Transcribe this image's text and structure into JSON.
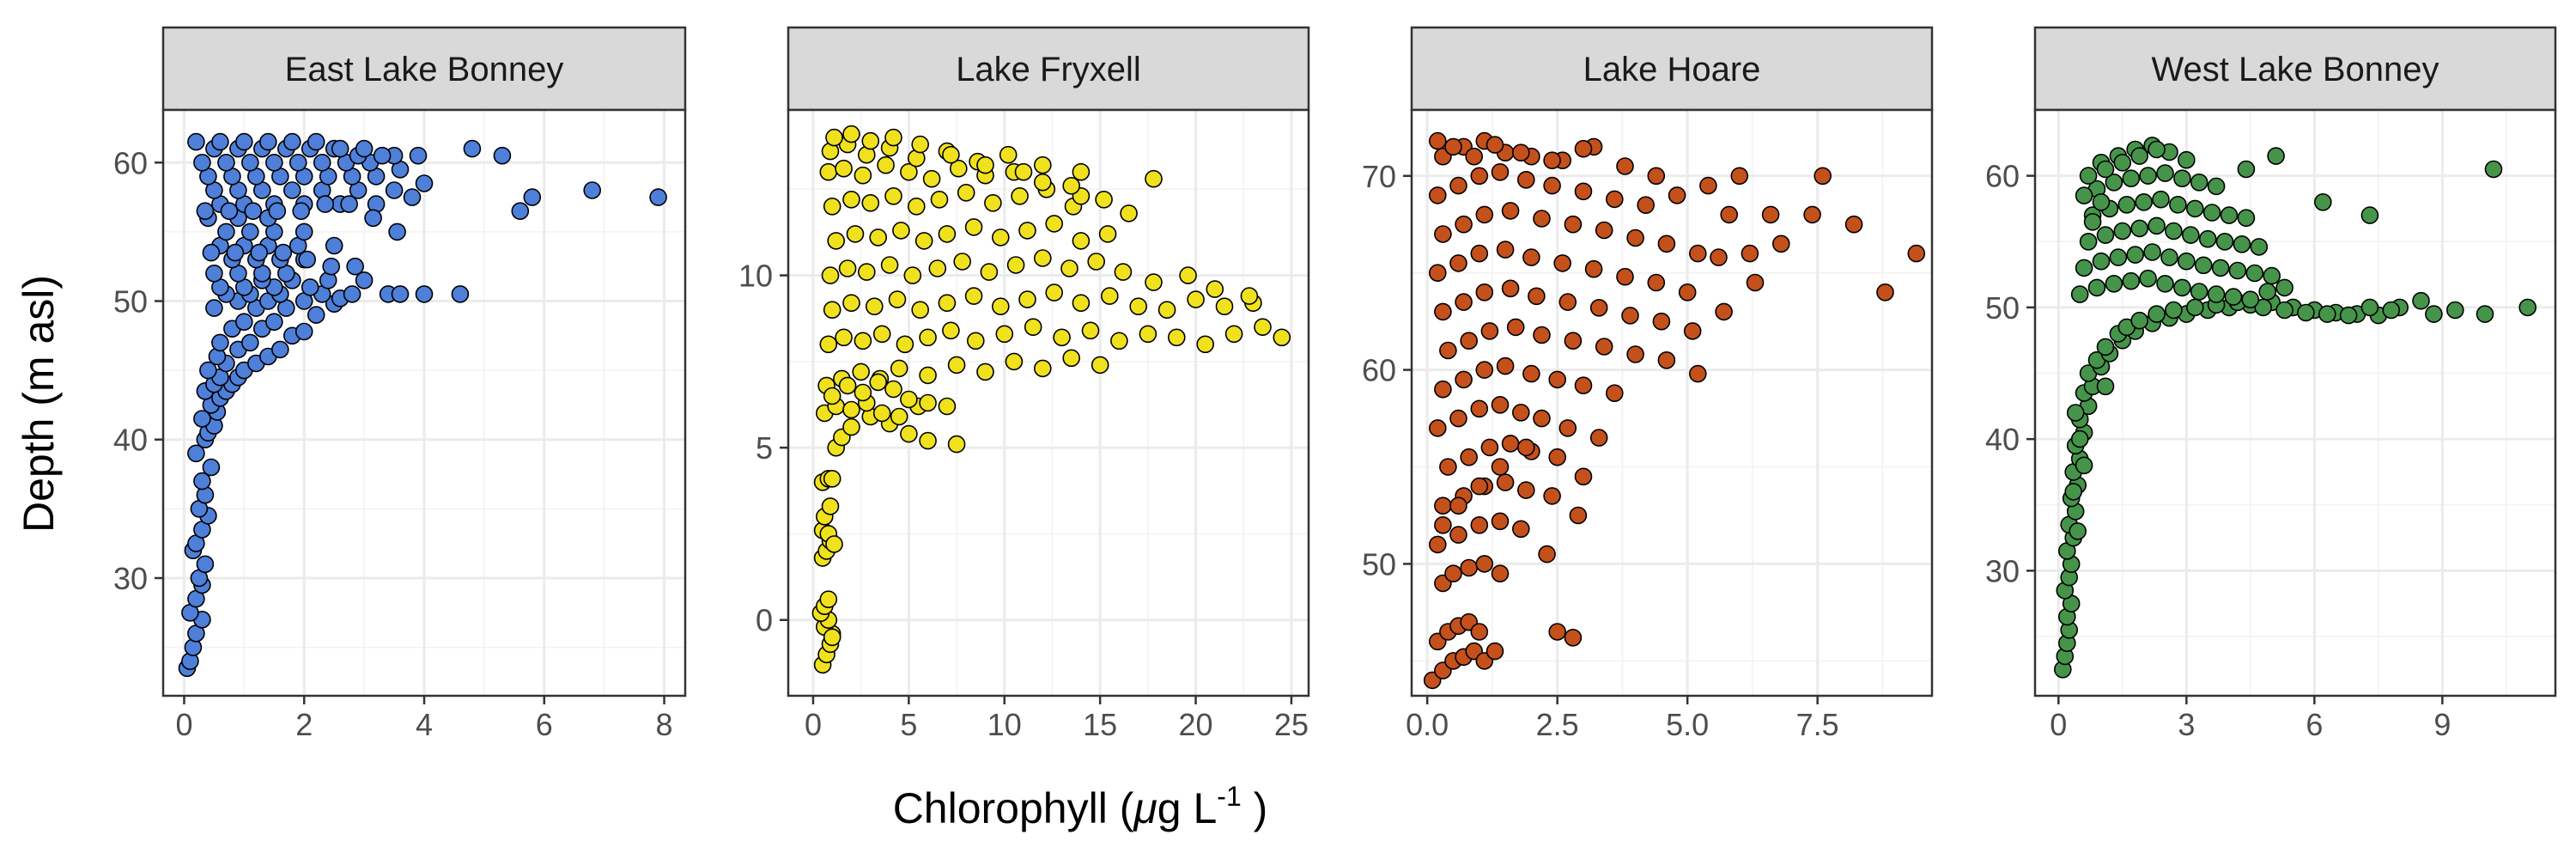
{
  "figure": {
    "xlabel_main": "Chlorophyll (",
    "xlabel_mu": "μ",
    "xlabel_unit": "g L",
    "xlabel_exp": "-1",
    "xlabel_end": " )",
    "ylabel": "Depth (m asl)"
  },
  "chart_data": [
    {
      "type": "scatter",
      "title": "East Lake Bonney",
      "color": "#4E7FD9",
      "xlim": [
        -0.35,
        8.35
      ],
      "ylim": [
        21.5,
        63.8
      ],
      "xticks": [
        0,
        2,
        4,
        6,
        8
      ],
      "yticks": [
        30,
        40,
        50,
        60
      ],
      "xtick_labels": [
        "0",
        "2",
        "4",
        "6",
        "8"
      ],
      "ytick_labels": [
        "30",
        "40",
        "50",
        "60"
      ],
      "x": [
        0.05,
        0.1,
        0.15,
        0.2,
        0.3,
        0.1,
        0.2,
        0.3,
        0.25,
        0.35,
        0.15,
        0.2,
        0.3,
        0.4,
        0.25,
        0.35,
        0.3,
        0.45,
        0.2,
        0.35,
        0.4,
        0.5,
        0.3,
        0.55,
        0.45,
        0.6,
        0.35,
        0.7,
        0.5,
        0.8,
        0.6,
        0.9,
        0.4,
        1.0,
        0.7,
        1.2,
        0.55,
        1.4,
        0.9,
        1.6,
        0.6,
        1.1,
        1.8,
        0.8,
        1.3,
        2.0,
        1.0,
        1.5,
        2.2,
        0.5,
        1.2,
        1.7,
        2.5,
        0.9,
        1.4,
        2.0,
        2.6,
        0.7,
        1.1,
        1.6,
        2.3,
        0.6,
        1.0,
        1.5,
        2.1,
        2.8,
        3.4,
        4.0,
        4.6,
        1.3,
        1.8,
        2.4,
        3.0,
        3.6,
        0.5,
        0.9,
        1.3,
        1.7,
        0.8,
        1.2,
        1.6,
        2.0,
        0.6,
        1.0,
        1.4,
        1.9,
        2.5,
        0.7,
        1.1,
        1.5,
        2.0,
        0.4,
        0.9,
        1.4,
        0.6,
        1.0,
        1.5,
        2.0,
        2.6,
        3.2,
        3.8,
        0.5,
        0.9,
        1.3,
        1.8,
        2.3,
        2.9,
        3.5,
        4.0,
        4.8,
        5.3,
        5.6,
        5.8,
        6.8,
        7.9,
        0.4,
        0.8,
        1.2,
        1.6,
        2.0,
        2.4,
        2.8,
        3.2,
        3.6,
        0.3,
        0.7,
        1.1,
        1.5,
        1.9,
        2.3,
        2.7,
        3.1,
        3.5,
        3.9,
        0.5,
        0.9,
        1.3,
        1.7,
        2.1,
        2.5,
        2.9,
        3.3,
        0.2,
        0.6,
        1.0,
        1.4,
        1.8,
        2.2,
        2.6,
        3.0,
        0.35,
        0.75,
        1.15,
        1.55,
        1.95,
        2.35,
        2.75,
        3.15,
        3.55,
        0.45,
        0.85,
        1.25,
        1.65,
        2.05,
        2.45,
        2.85
      ],
      "y": [
        23.5,
        24.0,
        25.0,
        26.0,
        27.0,
        27.5,
        28.5,
        29.5,
        30.0,
        31.0,
        32.0,
        32.5,
        33.5,
        34.5,
        35.0,
        36.0,
        37.0,
        38.0,
        39.0,
        40.0,
        40.5,
        41.0,
        41.5,
        42.0,
        42.5,
        43.0,
        43.5,
        43.5,
        44.0,
        44.0,
        44.5,
        44.5,
        45.0,
        45.0,
        45.5,
        45.5,
        46.0,
        46.0,
        46.5,
        46.5,
        47.0,
        47.0,
        47.5,
        48.0,
        48.0,
        47.8,
        48.5,
        48.5,
        49.0,
        49.5,
        49.5,
        49.5,
        49.8,
        50.0,
        50.0,
        50.0,
        50.2,
        50.5,
        50.5,
        50.5,
        50.5,
        51.0,
        51.0,
        51.0,
        51.0,
        50.5,
        50.5,
        50.5,
        50.5,
        51.5,
        51.5,
        51.5,
        51.5,
        50.5,
        52.0,
        52.0,
        52.0,
        52.0,
        53.0,
        53.0,
        53.0,
        53.0,
        54.0,
        54.0,
        54.0,
        54.0,
        54.0,
        55.0,
        55.0,
        55.0,
        55.0,
        56.0,
        56.0,
        56.0,
        57.0,
        57.0,
        57.0,
        57.0,
        57.0,
        57.0,
        57.5,
        58.0,
        58.0,
        58.0,
        58.0,
        58.0,
        58.0,
        58.0,
        58.5,
        61.0,
        60.5,
        56.5,
        57.5,
        58.0,
        57.5,
        59.0,
        59.0,
        59.0,
        59.0,
        59.0,
        59.0,
        59.0,
        59.0,
        59.5,
        60.0,
        60.0,
        60.0,
        60.0,
        60.0,
        60.0,
        60.0,
        60.0,
        60.5,
        60.5,
        61.0,
        61.0,
        61.0,
        61.0,
        61.0,
        61.0,
        60.5,
        60.5,
        61.5,
        61.5,
        61.5,
        61.5,
        61.5,
        61.5,
        61.0,
        61.0,
        56.5,
        56.5,
        56.5,
        56.5,
        56.5,
        57.0,
        57.0,
        56.0,
        55.0,
        53.5,
        53.5,
        53.5,
        53.5,
        53.0,
        52.5,
        52.5
      ]
    },
    {
      "type": "scatter",
      "title": "Lake Fryxell",
      "color": "#F0E11E",
      "xlim": [
        -1.3,
        25.9
      ],
      "ylim": [
        -2.2,
        14.8
      ],
      "xticks": [
        0,
        5,
        10,
        15,
        20,
        25
      ],
      "yticks": [
        0,
        5,
        10
      ],
      "xtick_labels": [
        "0",
        "5",
        "10",
        "15",
        "20",
        "25"
      ],
      "ytick_labels": [
        "0",
        "5",
        "10"
      ],
      "x": [
        0.5,
        0.7,
        0.9,
        1.0,
        0.6,
        0.8,
        0.4,
        0.6,
        0.8,
        1.0,
        0.5,
        0.7,
        0.9,
        0.5,
        0.8,
        1.1,
        0.6,
        0.9,
        0.5,
        0.8,
        1.0,
        1.2,
        1.5,
        2.0,
        3.0,
        4.0,
        5.0,
        6.0,
        7.5,
        0.6,
        1.2,
        2.0,
        2.8,
        3.6,
        4.5,
        5.5,
        0.7,
        1.5,
        2.5,
        3.5,
        4.5,
        6.0,
        7.5,
        9.0,
        10.5,
        12.0,
        13.5,
        15.0,
        0.8,
        1.6,
        2.6,
        3.6,
        4.8,
        6.0,
        7.2,
        8.5,
        10.0,
        11.5,
        13.0,
        14.5,
        16.0,
        17.5,
        19.0,
        20.5,
        22.0,
        23.5,
        24.5,
        1.0,
        2.0,
        3.2,
        4.4,
        5.6,
        7.0,
        8.4,
        9.8,
        11.2,
        12.6,
        14.0,
        15.5,
        17.0,
        18.5,
        20.0,
        21.5,
        23.0,
        0.9,
        1.8,
        2.8,
        4.0,
        5.2,
        6.5,
        7.8,
        9.2,
        10.6,
        12.0,
        13.4,
        14.8,
        16.2,
        17.8,
        19.6,
        21.0,
        22.8,
        1.2,
        2.2,
        3.4,
        4.6,
        5.8,
        7.0,
        8.4,
        9.8,
        11.2,
        12.6,
        14.0,
        15.4,
        1.0,
        2.0,
        3.0,
        4.2,
        5.4,
        6.6,
        8.0,
        9.4,
        10.8,
        12.2,
        13.6,
        15.2,
        0.8,
        1.6,
        2.6,
        3.8,
        5.0,
        6.2,
        7.6,
        9.0,
        10.5,
        12.0,
        14.0,
        16.5,
        0.9,
        1.8,
        2.8,
        4.0,
        5.4,
        7.0,
        8.6,
        10.2,
        12.0,
        14.0,
        1.1,
        2.0,
        3.0,
        4.2,
        5.6,
        7.2,
        9.0,
        11.0,
        13.5,
        17.8,
        1.0,
        1.8,
        2.6,
        3.4,
        4.2,
        5.0,
        6.0,
        7.0
      ],
      "y": [
        -1.3,
        -1.0,
        -0.7,
        -0.4,
        -0.2,
        0.0,
        0.2,
        0.4,
        0.6,
        -0.5,
        1.8,
        2.0,
        2.3,
        2.6,
        2.5,
        2.2,
        3.0,
        3.3,
        4.0,
        4.1,
        4.1,
        5.0,
        5.3,
        5.6,
        5.9,
        5.7,
        5.4,
        5.2,
        5.1,
        6.0,
        6.2,
        6.1,
        6.3,
        6.0,
        5.9,
        6.2,
        6.8,
        7.0,
        7.2,
        7.0,
        7.3,
        7.1,
        7.4,
        7.2,
        7.5,
        7.3,
        7.6,
        7.4,
        8.0,
        8.2,
        8.1,
        8.3,
        8.0,
        8.2,
        8.4,
        8.1,
        8.3,
        8.5,
        8.2,
        8.4,
        8.1,
        8.3,
        8.2,
        8.0,
        8.3,
        8.5,
        8.2,
        9.0,
        9.2,
        9.1,
        9.3,
        9.0,
        9.2,
        9.4,
        9.1,
        9.3,
        9.5,
        9.2,
        9.4,
        9.1,
        9.0,
        9.3,
        9.1,
        9.2,
        10.0,
        10.2,
        10.1,
        10.3,
        10.0,
        10.2,
        10.4,
        10.1,
        10.3,
        10.5,
        10.2,
        10.4,
        10.1,
        9.8,
        10.0,
        9.6,
        9.4,
        11.0,
        11.2,
        11.1,
        11.3,
        11.0,
        11.2,
        11.4,
        11.1,
        11.3,
        11.5,
        11.0,
        11.2,
        12.0,
        12.2,
        12.1,
        12.3,
        12.0,
        12.2,
        12.4,
        12.1,
        12.3,
        12.5,
        12.0,
        12.2,
        13.0,
        13.1,
        12.9,
        13.2,
        13.0,
        12.8,
        13.1,
        12.9,
        13.0,
        12.7,
        12.3,
        11.8,
        13.6,
        13.8,
        13.5,
        13.7,
        13.4,
        13.6,
        13.3,
        13.5,
        13.2,
        13.0,
        14.0,
        14.1,
        13.9,
        14.0,
        13.8,
        13.5,
        13.2,
        13.0,
        12.6,
        12.8,
        6.5,
        6.8,
        6.6,
        6.9,
        6.7,
        6.4,
        6.3,
        6.2
      ]
    },
    {
      "type": "scatter",
      "title": "Lake Hoare",
      "color": "#C4501B",
      "xlim": [
        -0.3,
        9.7
      ],
      "ylim": [
        43.2,
        73.4
      ],
      "xticks": [
        0.0,
        2.5,
        5.0,
        7.5
      ],
      "yticks": [
        50,
        60,
        70
      ],
      "xtick_labels": [
        "0.0",
        "2.5",
        "5.0",
        "7.5"
      ],
      "ytick_labels": [
        "50",
        "60",
        "70"
      ],
      "x": [
        0.1,
        0.3,
        0.5,
        0.7,
        0.9,
        1.1,
        0.2,
        0.4,
        0.6,
        0.8,
        1.0,
        1.3,
        0.3,
        0.5,
        0.8,
        1.1,
        1.4,
        0.2,
        0.6,
        1.0,
        1.4,
        1.8,
        2.3,
        0.3,
        0.7,
        1.1,
        1.5,
        1.9,
        2.4,
        2.9,
        0.4,
        0.8,
        1.2,
        1.6,
        2.0,
        2.5,
        3.0,
        0.2,
        0.6,
        1.0,
        1.4,
        1.8,
        2.2,
        2.7,
        3.3,
        0.3,
        0.7,
        1.1,
        1.5,
        2.0,
        2.5,
        3.0,
        3.6,
        0.4,
        0.8,
        1.2,
        1.7,
        2.2,
        2.8,
        3.4,
        4.0,
        4.6,
        5.2,
        0.3,
        0.7,
        1.1,
        1.6,
        2.1,
        2.7,
        3.3,
        3.9,
        4.5,
        5.1,
        5.7,
        6.3,
        0.2,
        0.6,
        1.0,
        1.5,
        2.0,
        2.6,
        3.2,
        3.8,
        4.4,
        5.0,
        5.6,
        6.2,
        6.8,
        7.4,
        8.2,
        0.3,
        0.7,
        1.1,
        1.6,
        2.2,
        2.8,
        3.4,
        4.0,
        4.6,
        5.2,
        5.8,
        6.6,
        7.6,
        8.8,
        9.4,
        0.2,
        0.6,
        1.0,
        1.4,
        1.9,
        2.4,
        3.0,
        3.6,
        4.2,
        4.8,
        5.4,
        6.0,
        0.3,
        0.7,
        1.1,
        1.5,
        2.0,
        2.6,
        3.2,
        3.8,
        4.4,
        0.2,
        0.5,
        0.9,
        1.3,
        1.8,
        2.4,
        3.0,
        0.3,
        0.6,
        1.0,
        1.4,
        1.9,
        2.5,
        2.8
      ],
      "y": [
        44.0,
        44.5,
        45.0,
        45.2,
        45.5,
        45.0,
        46.0,
        46.5,
        46.8,
        47.0,
        46.5,
        45.5,
        49.0,
        49.5,
        49.8,
        50.0,
        49.5,
        51.0,
        51.5,
        52.0,
        52.2,
        51.8,
        50.5,
        53.0,
        53.5,
        54.0,
        54.2,
        53.8,
        53.5,
        52.5,
        55.0,
        55.5,
        56.0,
        56.2,
        55.8,
        55.5,
        54.5,
        57.0,
        57.5,
        58.0,
        58.2,
        57.8,
        57.5,
        57.0,
        56.5,
        59.0,
        59.5,
        60.0,
        60.2,
        59.8,
        59.5,
        59.2,
        58.8,
        61.0,
        61.5,
        62.0,
        62.2,
        61.8,
        61.5,
        61.2,
        60.8,
        60.5,
        59.8,
        63.0,
        63.5,
        64.0,
        64.2,
        63.8,
        63.5,
        63.2,
        62.8,
        62.5,
        62.0,
        63.0,
        64.5,
        65.0,
        65.5,
        66.0,
        66.2,
        65.8,
        65.5,
        65.2,
        64.8,
        64.5,
        64.0,
        65.8,
        66.0,
        66.5,
        68.0,
        67.5,
        67.0,
        67.5,
        68.0,
        68.2,
        67.8,
        67.5,
        67.2,
        66.8,
        66.5,
        66.0,
        68.0,
        68.0,
        70.0,
        64.0,
        66.0,
        69.0,
        69.5,
        70.0,
        70.2,
        69.8,
        69.5,
        69.2,
        68.8,
        68.5,
        69.0,
        69.5,
        70.0,
        71.0,
        71.5,
        71.8,
        71.2,
        71.0,
        70.8,
        71.5,
        70.5,
        70.0,
        71.8,
        71.5,
        71.0,
        71.6,
        71.2,
        70.8,
        71.4,
        52.0,
        53.0,
        54.0,
        55.0,
        56.0,
        46.5,
        46.2
      ]
    },
    {
      "type": "scatter",
      "title": "West Lake Bonney",
      "color": "#45944A",
      "xlim": [
        -0.55,
        11.65
      ],
      "ylim": [
        20.5,
        65.0
      ],
      "xticks": [
        0,
        3,
        6,
        9
      ],
      "yticks": [
        30,
        40,
        50,
        60
      ],
      "xtick_labels": [
        "0",
        "3",
        "6",
        "9"
      ],
      "ytick_labels": [
        "30",
        "40",
        "50",
        "60"
      ],
      "x": [
        0.1,
        0.15,
        0.2,
        0.25,
        0.2,
        0.3,
        0.15,
        0.25,
        0.3,
        0.2,
        0.35,
        0.25,
        0.4,
        0.3,
        0.45,
        0.35,
        0.5,
        0.4,
        0.6,
        0.5,
        0.7,
        0.6,
        0.8,
        0.7,
        1.0,
        0.9,
        1.2,
        1.1,
        1.5,
        1.4,
        1.8,
        1.6,
        2.2,
        1.9,
        2.6,
        2.3,
        3.0,
        2.7,
        3.5,
        3.2,
        4.0,
        3.7,
        4.5,
        4.2,
        5.0,
        4.8,
        5.5,
        5.3,
        6.0,
        5.8,
        6.5,
        6.3,
        7.0,
        6.8,
        7.5,
        7.3,
        8.0,
        7.8,
        8.5,
        8.8,
        9.3,
        10.0,
        11.0,
        0.5,
        0.9,
        1.3,
        1.7,
        2.1,
        2.5,
        2.9,
        3.3,
        3.7,
        4.1,
        4.5,
        4.9,
        5.3,
        0.6,
        1.0,
        1.4,
        1.8,
        2.2,
        2.6,
        3.0,
        3.4,
        3.8,
        4.2,
        4.6,
        5.0,
        6.2,
        7.3,
        0.7,
        1.1,
        1.5,
        1.9,
        2.3,
        2.7,
        3.1,
        3.5,
        3.9,
        4.3,
        4.7,
        0.8,
        1.2,
        1.6,
        2.0,
        2.4,
        2.8,
        3.2,
        3.6,
        4.0,
        4.4,
        0.9,
        1.3,
        1.7,
        2.1,
        2.5,
        2.9,
        3.3,
        3.7,
        4.4,
        5.1,
        10.2,
        1.0,
        1.4,
        1.8,
        2.2,
        2.6,
        3.0,
        0.7,
        1.1,
        1.5,
        1.9,
        2.3,
        0.6,
        1.0,
        0.8,
        0.4,
        0.5,
        0.6,
        1.1,
        0.35,
        0.45
      ],
      "y": [
        22.5,
        23.5,
        24.5,
        25.5,
        26.5,
        27.5,
        28.5,
        29.5,
        30.5,
        31.5,
        32.5,
        33.5,
        34.5,
        35.5,
        36.5,
        37.5,
        38.5,
        39.5,
        40.5,
        41.5,
        42.5,
        43.5,
        44.0,
        45.0,
        45.5,
        46.0,
        46.5,
        47.0,
        47.5,
        48.0,
        48.2,
        48.5,
        48.8,
        49.0,
        49.2,
        49.5,
        49.5,
        49.8,
        49.8,
        50.0,
        50.0,
        50.2,
        50.2,
        50.4,
        50.4,
        50.0,
        50.0,
        49.8,
        49.8,
        49.6,
        49.6,
        49.5,
        49.5,
        49.4,
        49.4,
        50.0,
        50.0,
        49.8,
        50.5,
        49.5,
        49.8,
        49.5,
        50.0,
        51.0,
        51.5,
        51.8,
        52.0,
        52.2,
        51.8,
        51.5,
        51.2,
        51.0,
        50.8,
        50.6,
        51.2,
        51.5,
        53.0,
        53.5,
        53.8,
        54.0,
        54.2,
        53.8,
        53.5,
        53.2,
        53.0,
        52.8,
        52.6,
        52.4,
        58.0,
        57.0,
        55.0,
        55.5,
        55.8,
        56.0,
        56.2,
        55.8,
        55.5,
        55.2,
        55.0,
        54.8,
        54.6,
        57.0,
        57.5,
        57.8,
        58.0,
        58.2,
        57.8,
        57.5,
        57.2,
        57.0,
        56.8,
        59.0,
        59.5,
        59.8,
        60.0,
        60.2,
        59.8,
        59.5,
        59.2,
        60.5,
        61.5,
        60.5,
        61.0,
        61.5,
        62.0,
        62.3,
        61.8,
        61.2,
        60.0,
        60.5,
        61.0,
        61.5,
        62.0,
        58.5,
        58.0,
        56.5,
        42.0,
        40.0,
        38.0,
        44.0,
        36.0,
        33.0
      ]
    }
  ]
}
